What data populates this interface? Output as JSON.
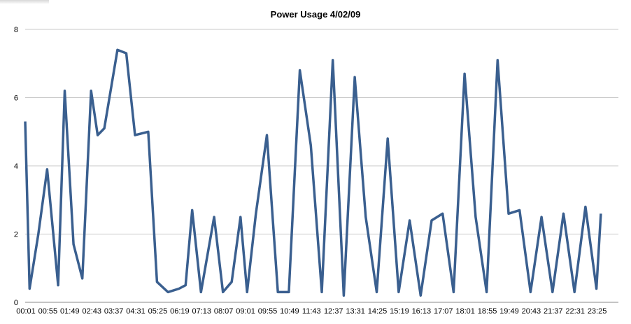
{
  "chart_data": {
    "type": "line",
    "title": "Power Usage 4/02/09",
    "xlabel": "",
    "ylabel": "",
    "ylim": [
      0,
      8
    ],
    "y_ticks": [
      "0",
      "2",
      "4",
      "6",
      "8"
    ],
    "x_ticks": [
      "00:01",
      "00:55",
      "01:49",
      "02:43",
      "03:37",
      "04:31",
      "05:25",
      "06:19",
      "07:13",
      "08:07",
      "09:01",
      "09:55",
      "10:49",
      "11:43",
      "12:37",
      "13:31",
      "14:25",
      "15:19",
      "16:13",
      "17:07",
      "18:01",
      "18:55",
      "19:49",
      "20:43",
      "21:37",
      "22:31",
      "23:25"
    ],
    "grid": true,
    "legend": "none",
    "series_color": "#3a5f8f",
    "series": [
      {
        "x_index": [
          0,
          0.2,
          0.6,
          1,
          1.5,
          1.8,
          2.2,
          2.6,
          3,
          3.3,
          3.6,
          4.2,
          4.6,
          5,
          5.6,
          6,
          6.5,
          7,
          7.3,
          7.6,
          8,
          8.6,
          9,
          9.4,
          9.8,
          10.1,
          10.5,
          11,
          11.5,
          12,
          12.5,
          13,
          13.5,
          14,
          14.5,
          15,
          15.5,
          16,
          16.5,
          17,
          17.5,
          18,
          18.5,
          19,
          19.5,
          20,
          20.5,
          21,
          21.5,
          22,
          22.5,
          23,
          23.5,
          24,
          24.5,
          25,
          25.5,
          26,
          26.2
        ],
        "values": [
          5.3,
          0.4,
          2,
          3.9,
          0.5,
          6.2,
          1.7,
          0.7,
          6.2,
          4.9,
          5.1,
          7.4,
          7.3,
          4.9,
          5,
          0.6,
          0.3,
          0.4,
          0.5,
          2.7,
          0.3,
          2.5,
          0.3,
          0.6,
          2.5,
          0.3,
          2.6,
          4.9,
          0.3,
          0.3,
          6.8,
          4.6,
          0.3,
          7.1,
          0.2,
          6.6,
          2.5,
          0.3,
          4.8,
          0.3,
          2.4,
          0.2,
          2.4,
          2.6,
          0.3,
          6.7,
          2.5,
          0.3,
          7.1,
          2.6,
          2.7,
          0.3,
          2.5,
          0.3,
          2.6,
          0.3,
          2.8,
          0.4,
          2.6
        ]
      }
    ]
  }
}
